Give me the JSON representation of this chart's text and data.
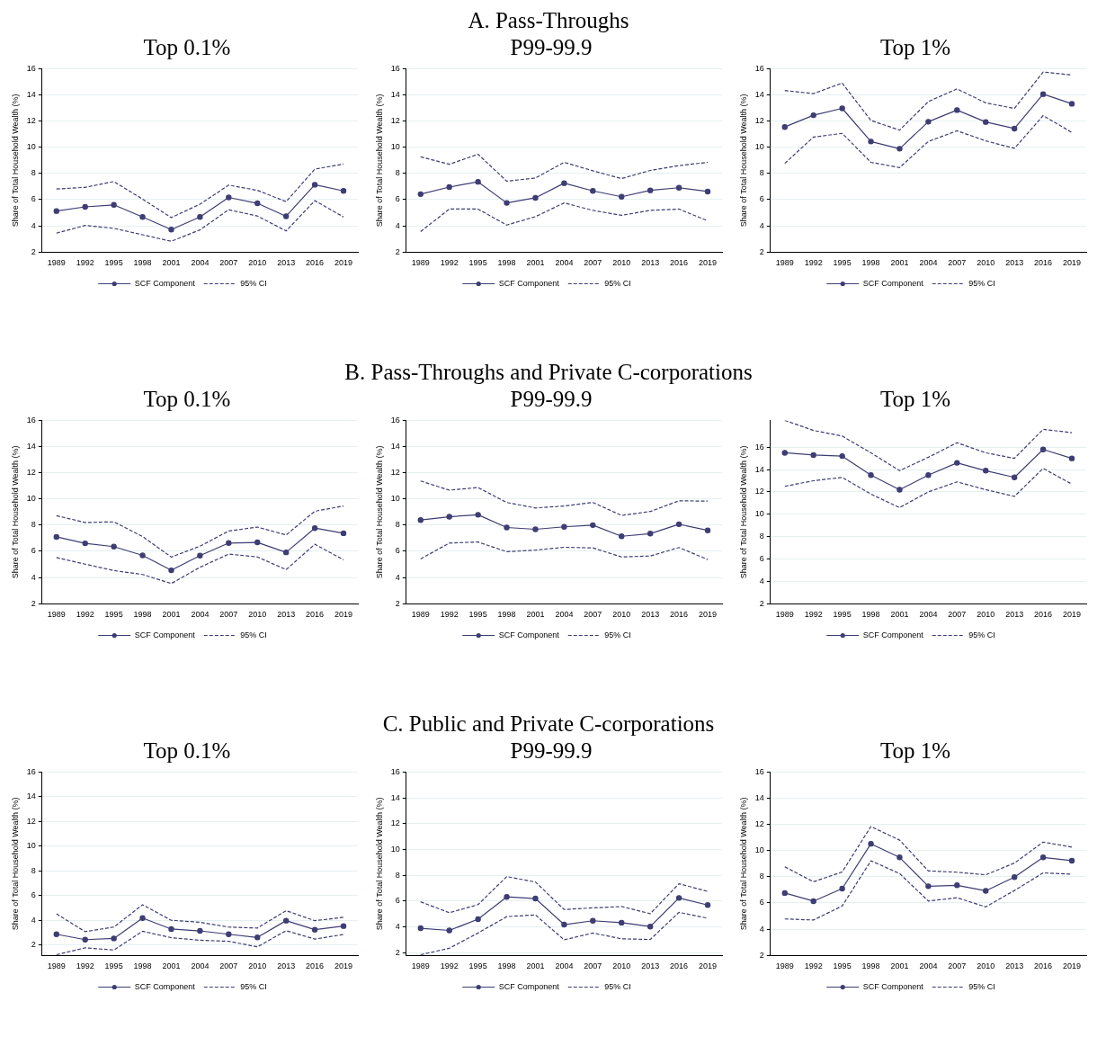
{
  "chart_data": [
    {
      "type": "line",
      "title": "Top 0.1%",
      "annotations": [
        "A. Pass-Throughs"
      ],
      "ylabel": "Share of Total Household Wealth (%)",
      "categories": [
        "1989",
        "1992",
        "1995",
        "1998",
        "2001",
        "2004",
        "2007",
        "2010",
        "2013",
        "2016",
        "2019"
      ],
      "ylim": [
        2,
        16
      ],
      "yticks": [
        2,
        4,
        6,
        8,
        10,
        12,
        14,
        16
      ],
      "grid": "y",
      "legend": "bottom",
      "series": [
        {
          "name": "SCF Component",
          "color": "#3e3d74",
          "marker": "circle",
          "line_style": "solid",
          "values": [
            5.13,
            5.45,
            5.6,
            4.68,
            3.71,
            4.68,
            6.17,
            5.72,
            4.73,
            7.14,
            6.67
          ]
        },
        {
          "name": "95% CI",
          "color": "#3e3d74",
          "marker": "none",
          "line_style": "dashed",
          "values": [
            6.81,
            6.94,
            7.38,
            6.04,
            4.63,
            5.65,
            7.11,
            6.71,
            5.85,
            8.33,
            8.72
          ]
        },
        {
          "color": "#3e3d74",
          "marker": "none",
          "line_style": "dashed",
          "values": [
            3.44,
            4.03,
            3.81,
            3.32,
            2.82,
            3.69,
            5.23,
            4.75,
            3.61,
            5.92,
            4.68
          ]
        }
      ]
    },
    {
      "type": "line",
      "title": "P99-99.9",
      "ylabel": "Share of Total Household Wealth (%)",
      "categories": [
        "1989",
        "1992",
        "1995",
        "1998",
        "2001",
        "2004",
        "2007",
        "2010",
        "2013",
        "2016",
        "2019"
      ],
      "ylim": [
        2,
        16
      ],
      "yticks": [
        2,
        4,
        6,
        8,
        10,
        12,
        14,
        16
      ],
      "grid": "y",
      "legend": "bottom",
      "series": [
        {
          "name": "SCF Component",
          "color": "#3e3d74",
          "marker": "circle",
          "line_style": "solid",
          "values": [
            6.42,
            6.96,
            7.36,
            5.75,
            6.14,
            7.26,
            6.67,
            6.22,
            6.71,
            6.91,
            6.62
          ]
        },
        {
          "name": "95% CI",
          "color": "#3e3d74",
          "marker": "none",
          "line_style": "dashed",
          "values": [
            9.27,
            8.7,
            9.47,
            7.41,
            7.65,
            8.85,
            8.2,
            7.61,
            8.23,
            8.6,
            8.85
          ]
        },
        {
          "color": "#3e3d74",
          "marker": "none",
          "line_style": "dashed",
          "values": [
            3.56,
            5.28,
            5.28,
            4.06,
            4.7,
            5.75,
            5.18,
            4.8,
            5.18,
            5.28,
            4.38
          ]
        }
      ]
    },
    {
      "type": "line",
      "title": "Top 1%",
      "ylabel": "Share of Total Household Wealth (%)",
      "categories": [
        "1989",
        "1992",
        "1995",
        "1998",
        "2001",
        "2004",
        "2007",
        "2010",
        "2013",
        "2016",
        "2019"
      ],
      "ylim": [
        2,
        16
      ],
      "yticks": [
        2,
        4,
        6,
        8,
        10,
        12,
        14,
        16
      ],
      "grid": "y",
      "legend": "bottom",
      "series": [
        {
          "name": "SCF Component",
          "color": "#3e3d74",
          "marker": "circle",
          "line_style": "solid",
          "values": [
            11.55,
            12.45,
            12.97,
            10.44,
            9.89,
            11.95,
            12.84,
            11.93,
            11.43,
            14.06,
            13.32
          ]
        },
        {
          "name": "95% CI",
          "color": "#3e3d74",
          "marker": "none",
          "line_style": "dashed",
          "values": [
            14.33,
            14.1,
            14.9,
            12.05,
            11.31,
            13.49,
            14.46,
            13.39,
            12.97,
            15.75,
            15.52
          ]
        },
        {
          "color": "#3e3d74",
          "marker": "none",
          "line_style": "dashed",
          "values": [
            8.77,
            10.78,
            11.06,
            8.85,
            8.45,
            10.44,
            11.26,
            10.49,
            9.92,
            12.42,
            11.13
          ]
        }
      ]
    },
    {
      "type": "line",
      "title": "Top 0.1%",
      "annotations": [
        "B. Pass-Throughs and Private C-corporations"
      ],
      "ylabel": "Share of Total Household Wealth (%)",
      "categories": [
        "1989",
        "1992",
        "1995",
        "1998",
        "2001",
        "2004",
        "2007",
        "2010",
        "2013",
        "2016",
        "2019"
      ],
      "ylim": [
        2,
        16
      ],
      "yticks": [
        2,
        4,
        6,
        8,
        10,
        12,
        14,
        16
      ],
      "grid": "y",
      "legend": "bottom",
      "series": [
        {
          "name": "SCF Component",
          "color": "#3e3d74",
          "marker": "circle",
          "line_style": "solid",
          "values": [
            7.1,
            6.61,
            6.36,
            5.69,
            4.55,
            5.67,
            6.63,
            6.68,
            5.92,
            7.77,
            7.38
          ]
        },
        {
          "name": "95% CI",
          "color": "#3e3d74",
          "marker": "none",
          "line_style": "dashed",
          "values": [
            8.72,
            8.2,
            8.25,
            7.13,
            5.56,
            6.39,
            7.55,
            7.85,
            7.25,
            9.06,
            9.46
          ]
        },
        {
          "color": "#3e3d74",
          "marker": "none",
          "line_style": "dashed",
          "values": [
            5.52,
            5.02,
            4.53,
            4.23,
            3.54,
            4.78,
            5.79,
            5.57,
            4.6,
            6.54,
            5.35
          ]
        }
      ]
    },
    {
      "type": "line",
      "title": "P99-99.9",
      "ylabel": "Share of Total Household Wealth (%)",
      "categories": [
        "1989",
        "1992",
        "1995",
        "1998",
        "2001",
        "2004",
        "2007",
        "2010",
        "2013",
        "2016",
        "2019"
      ],
      "ylim": [
        2,
        16
      ],
      "yticks": [
        2,
        4,
        6,
        8,
        10,
        12,
        14,
        16
      ],
      "grid": "y",
      "legend": "bottom",
      "series": [
        {
          "name": "SCF Component",
          "color": "#3e3d74",
          "marker": "circle",
          "line_style": "solid",
          "values": [
            8.39,
            8.64,
            8.79,
            7.82,
            7.68,
            7.87,
            8.0,
            7.15,
            7.35,
            8.07,
            7.6
          ]
        },
        {
          "name": "95% CI",
          "color": "#3e3d74",
          "marker": "none",
          "line_style": "dashed",
          "values": [
            11.37,
            10.67,
            10.87,
            9.73,
            9.31,
            9.46,
            9.73,
            8.74,
            9.04,
            9.86,
            9.83
          ]
        },
        {
          "color": "#3e3d74",
          "marker": "none",
          "line_style": "dashed",
          "values": [
            5.42,
            6.63,
            6.71,
            5.97,
            6.09,
            6.31,
            6.26,
            5.57,
            5.64,
            6.29,
            5.37
          ]
        }
      ]
    },
    {
      "type": "line",
      "title": "Top 1%",
      "ylabel": "Share of Total Household Wealth (%)",
      "categories": [
        "1989",
        "1992",
        "1995",
        "1998",
        "2001",
        "2004",
        "2007",
        "2010",
        "2013",
        "2016",
        "2019"
      ],
      "ylim": [
        2,
        18.4
      ],
      "yticks": [
        2,
        4,
        6,
        8,
        10,
        12,
        14,
        16
      ],
      "grid": "y",
      "legend": "bottom",
      "series": [
        {
          "name": "SCF Component",
          "color": "#3e3d74",
          "marker": "circle",
          "line_style": "solid",
          "values": [
            15.5,
            15.3,
            15.2,
            13.5,
            12.2,
            13.5,
            14.6,
            13.9,
            13.3,
            15.8,
            15.0
          ]
        },
        {
          "name": "95% CI",
          "color": "#3e3d74",
          "marker": "none",
          "line_style": "dashed",
          "values": [
            18.4,
            17.5,
            17.0,
            15.5,
            13.9,
            15.1,
            16.4,
            15.5,
            15.0,
            17.6,
            17.3
          ]
        },
        {
          "color": "#3e3d74",
          "marker": "none",
          "line_style": "dashed",
          "values": [
            12.5,
            13.0,
            13.3,
            11.8,
            10.6,
            12.0,
            12.9,
            12.2,
            11.6,
            14.1,
            12.7
          ]
        }
      ]
    },
    {
      "type": "line",
      "title": "Top 0.1%",
      "annotations": [
        "C. Public and Private C-corporations"
      ],
      "ylabel": "Share of Total Household Wealth (%)",
      "categories": [
        "1989",
        "1992",
        "1995",
        "1998",
        "2001",
        "2004",
        "2007",
        "2010",
        "2013",
        "2016",
        "2019"
      ],
      "ylim": [
        1.15,
        16
      ],
      "yticks": [
        2,
        4,
        6,
        8,
        10,
        12,
        14,
        16
      ],
      "grid": "y",
      "legend": "bottom",
      "series": [
        {
          "name": "SCF Component",
          "color": "#3e3d74",
          "marker": "circle",
          "line_style": "solid",
          "values": [
            2.86,
            2.42,
            2.52,
            4.17,
            3.28,
            3.13,
            2.86,
            2.6,
            3.96,
            3.23,
            3.52
          ]
        },
        {
          "name": "95% CI",
          "color": "#3e3d74",
          "marker": "none",
          "line_style": "dashed",
          "values": [
            4.51,
            3.07,
            3.44,
            5.25,
            3.99,
            3.83,
            3.44,
            3.36,
            4.77,
            3.96,
            4.23
          ]
        },
        {
          "color": "#3e3d74",
          "marker": "none",
          "line_style": "dashed",
          "values": [
            1.2,
            1.76,
            1.58,
            3.1,
            2.58,
            2.37,
            2.29,
            1.84,
            3.15,
            2.47,
            2.84
          ]
        }
      ]
    },
    {
      "type": "line",
      "title": "P99-99.9",
      "ylabel": "Share of Total Household Wealth (%)",
      "categories": [
        "1989",
        "1992",
        "1995",
        "1998",
        "2001",
        "2004",
        "2007",
        "2010",
        "2013",
        "2016",
        "2019"
      ],
      "ylim": [
        1.8,
        16
      ],
      "yticks": [
        2,
        4,
        6,
        8,
        10,
        12,
        14,
        16
      ],
      "grid": "y",
      "legend": "bottom",
      "series": [
        {
          "name": "SCF Component",
          "color": "#3e3d74",
          "marker": "circle",
          "line_style": "solid",
          "values": [
            3.9,
            3.73,
            4.6,
            6.33,
            6.2,
            4.18,
            4.48,
            4.33,
            4.03,
            6.25,
            5.7
          ]
        },
        {
          "name": "95% CI",
          "color": "#3e3d74",
          "marker": "none",
          "line_style": "dashed",
          "values": [
            5.95,
            5.1,
            5.73,
            7.9,
            7.48,
            5.35,
            5.48,
            5.58,
            5.03,
            7.35,
            6.75
          ]
        },
        {
          "color": "#3e3d74",
          "marker": "none",
          "line_style": "dashed",
          "values": [
            1.85,
            2.35,
            3.53,
            4.8,
            4.93,
            3.0,
            3.53,
            3.08,
            3.03,
            5.13,
            4.68
          ]
        }
      ]
    },
    {
      "type": "line",
      "title": "Top 1%",
      "ylabel": "Share of Total Household Wealth (%)",
      "categories": [
        "1989",
        "1992",
        "1995",
        "1998",
        "2001",
        "2004",
        "2007",
        "2010",
        "2013",
        "2016",
        "2019"
      ],
      "ylim": [
        2,
        16
      ],
      "yticks": [
        2,
        4,
        6,
        8,
        10,
        12,
        14,
        16
      ],
      "grid": "y",
      "legend": "bottom",
      "series": [
        {
          "name": "SCF Component",
          "color": "#3e3d74",
          "marker": "circle",
          "line_style": "solid",
          "values": [
            6.76,
            6.14,
            7.1,
            10.52,
            9.48,
            7.28,
            7.35,
            6.93,
            7.97,
            9.48,
            9.23
          ]
        },
        {
          "name": "95% CI",
          "color": "#3e3d74",
          "marker": "none",
          "line_style": "dashed",
          "values": [
            8.76,
            7.62,
            8.37,
            11.84,
            10.8,
            8.45,
            8.35,
            8.15,
            9.05,
            10.65,
            10.27
          ]
        },
        {
          "color": "#3e3d74",
          "marker": "none",
          "line_style": "dashed",
          "values": [
            4.78,
            4.7,
            5.77,
            9.22,
            8.25,
            6.15,
            6.4,
            5.7,
            6.95,
            8.3,
            8.2
          ]
        }
      ]
    }
  ]
}
